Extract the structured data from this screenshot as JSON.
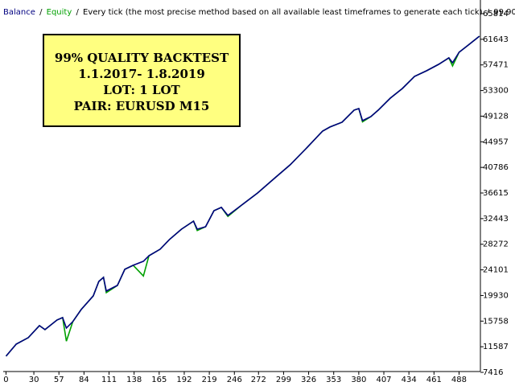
{
  "chart_data": {
    "type": "line",
    "legend_separator": "/",
    "header_note": "Every tick (the most precise method based on all available least timeframes to generate each tick)",
    "quality": "99.90%",
    "annotation": [
      "99% QUALITY BACKTEST",
      "1.1.2017- 1.8.2019",
      "LOT: 1 LOT",
      "PAIR: EURUSD M15"
    ],
    "x": [
      0,
      11,
      24,
      36,
      42,
      55,
      61,
      65,
      72,
      81,
      94,
      100,
      105,
      108,
      120,
      128,
      137,
      148,
      154,
      166,
      176,
      189,
      202,
      206,
      215,
      224,
      232,
      239,
      254,
      271,
      289,
      306,
      323,
      341,
      349,
      362,
      375,
      380,
      384,
      393,
      401,
      414,
      427,
      440,
      453,
      466,
      477,
      481,
      488,
      498,
      510
    ],
    "series": [
      {
        "name": "Equity",
        "color": "#00a000",
        "values": [
          10051,
          12014,
          13060,
          15030,
          14370,
          15940,
          16335,
          12500,
          15680,
          17640,
          19870,
          22220,
          22880,
          20400,
          21570,
          24190,
          24840,
          23100,
          26410,
          27460,
          29030,
          30730,
          32040,
          30500,
          31130,
          33740,
          34270,
          32800,
          34660,
          36620,
          38980,
          41200,
          43820,
          46700,
          47360,
          48140,
          50110,
          50370,
          48200,
          49060,
          50110,
          52070,
          53640,
          55600,
          56520,
          57570,
          58620,
          57300,
          59530,
          60710,
          62150
        ]
      },
      {
        "name": "Balance",
        "color": "#000080",
        "values": [
          10051,
          12014,
          13060,
          15030,
          14370,
          15940,
          16335,
          14630,
          15680,
          17640,
          19870,
          22220,
          22880,
          20650,
          21570,
          24190,
          24840,
          25500,
          26410,
          27460,
          29030,
          30730,
          32040,
          30730,
          31130,
          33740,
          34270,
          32960,
          34660,
          36620,
          38980,
          41200,
          43820,
          46700,
          47360,
          48140,
          50110,
          50370,
          48400,
          49060,
          50110,
          52070,
          53640,
          55600,
          56520,
          57570,
          58620,
          57830,
          59530,
          60710,
          62150
        ]
      }
    ],
    "xlim": [
      -3,
      511
    ],
    "xticks": [
      0,
      30,
      57,
      84,
      111,
      138,
      165,
      192,
      219,
      246,
      272,
      299,
      326,
      353,
      380,
      407,
      434,
      461,
      488
    ],
    "ylim": [
      7550,
      68040
    ],
    "yticks": [
      7416,
      11587,
      15758,
      19930,
      24101,
      28272,
      32443,
      36615,
      40786,
      44957,
      49128,
      53300,
      57471,
      61643,
      65814
    ],
    "grid": false
  }
}
